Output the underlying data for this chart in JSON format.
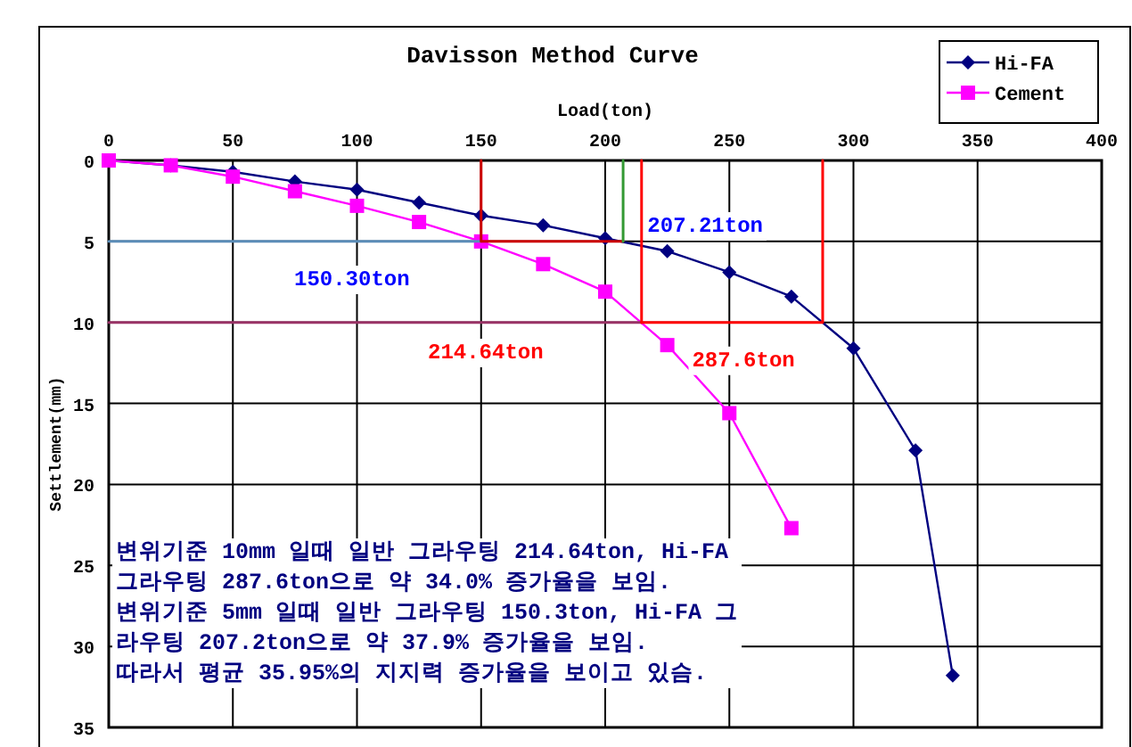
{
  "chart_data": {
    "type": "line",
    "title": "Davisson Method Curve",
    "xlabel": "Load(ton)",
    "ylabel": "Settlement(mm)",
    "xlim": [
      0,
      400
    ],
    "xticks": [
      0,
      50,
      100,
      150,
      200,
      250,
      300,
      350,
      400
    ],
    "ylim": [
      35,
      0
    ],
    "yticks": [
      0,
      5,
      10,
      15,
      20,
      25,
      30,
      35
    ],
    "grid": true,
    "legend": "top right",
    "series": [
      {
        "name": "Hi-FA",
        "color": "#000080",
        "marker": "diamond",
        "x": [
          0,
          25,
          50,
          75,
          100,
          125,
          150,
          175,
          200,
          225,
          250,
          275,
          300,
          325,
          340
        ],
        "values": [
          0,
          0.3,
          0.7,
          1.3,
          1.8,
          2.6,
          3.4,
          4.0,
          4.8,
          5.6,
          6.9,
          8.4,
          11.6,
          17.9,
          31.8
        ]
      },
      {
        "name": "Cement",
        "color": "#ff00ff",
        "marker": "square",
        "x": [
          0,
          25,
          50,
          75,
          100,
          125,
          150,
          175,
          200,
          225,
          250,
          275
        ],
        "values": [
          0,
          0.3,
          1.0,
          1.9,
          2.8,
          3.8,
          5.0,
          6.4,
          8.1,
          11.4,
          15.6,
          22.7
        ]
      },
      {
        "color": "#5b8db8",
        "marker": "none",
        "x": [
          0,
          150
        ],
        "values": [
          5,
          5
        ]
      },
      {
        "color": "#cc0000",
        "marker": "none",
        "x": [
          150,
          150,
          207.21
        ],
        "values": [
          0,
          5,
          5
        ]
      },
      {
        "color": "#339933",
        "marker": "none",
        "x": [
          207.21,
          207.21
        ],
        "values": [
          0,
          5
        ]
      },
      {
        "color": "#993366",
        "marker": "none",
        "x": [
          0,
          214.64
        ],
        "values": [
          10,
          10
        ]
      },
      {
        "color": "#ff0000",
        "marker": "none",
        "x": [
          214.64,
          214.64
        ],
        "values": [
          0,
          10
        ]
      },
      {
        "color": "#ff0000",
        "marker": "none",
        "x": [
          214.64,
          287.6,
          287.6
        ],
        "values": [
          10,
          10,
          0
        ]
      }
    ],
    "annotations": [
      {
        "text": "207.21ton",
        "x": 217,
        "y": 4.4
      },
      "150.30ton",
      "214.64ton",
      {
        "text": "287.6ton",
        "x": 235,
        "y": 12.7
      },
      "변위기준 10mm 일때 일반 그라우팅 214.64ton, Hi-FA\n그라우팅 287.6ton으로 약 34.0% 증가율을 보임.\n변위기준 5mm 일때 일반 그라우팅 150.3ton, Hi-FA 그\n라우팅 207.2ton으로 약 37.9% 증가율을 보임.\n따라서 평균 35.95%의 지지력 증가율을 보이고 있슴."
    ]
  }
}
